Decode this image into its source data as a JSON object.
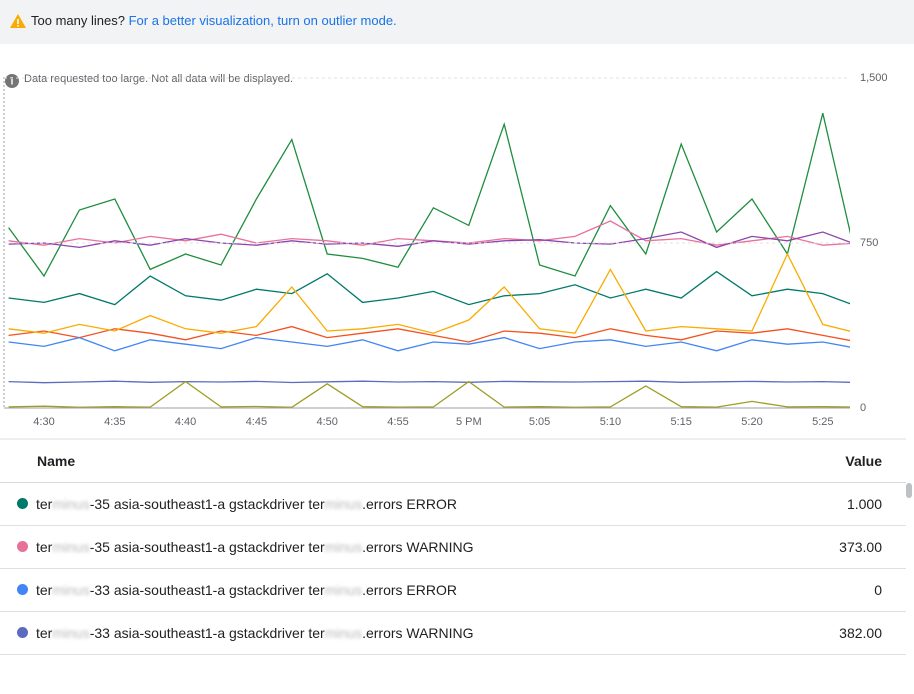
{
  "banner": {
    "question": "Too many lines?",
    "link": "For a better visualization, turn on outlier mode."
  },
  "note": "Data requested too large. Not all data will be displayed.",
  "chart_data": {
    "type": "line",
    "categories": [
      null,
      "4:30",
      null,
      "4:35",
      null,
      "4:40",
      null,
      "4:45",
      null,
      "4:50",
      null,
      "4:55",
      null,
      "5 PM",
      null,
      "5:05",
      null,
      "5:10",
      null,
      "5:15",
      null,
      "5:20",
      null,
      "5:25",
      null
    ],
    "ylim": [
      0,
      1500
    ],
    "yticks": [
      0,
      750,
      {
        "value": 1500,
        "label": "1,500"
      }
    ],
    "grid": true,
    "series": [
      {
        "color": "#1e8e3e",
        "values": [
          820,
          600,
          900,
          950,
          630,
          700,
          650,
          950,
          1220,
          700,
          680,
          640,
          910,
          830,
          1290,
          650,
          600,
          920,
          700,
          1200,
          800,
          950,
          700,
          1340,
          640
        ]
      },
      {
        "color": "#e8719c",
        "values": [
          760,
          740,
          770,
          750,
          780,
          760,
          790,
          750,
          770,
          760,
          740,
          770,
          760,
          750,
          770,
          760,
          780,
          850,
          760,
          770,
          740,
          760,
          780,
          740,
          750
        ]
      },
      {
        "color": "#8e44ad",
        "values": [
          745,
          750,
          730,
          760,
          740,
          770,
          750,
          740,
          760,
          745,
          750,
          735,
          760,
          745,
          760,
          765,
          750,
          745,
          770,
          800,
          730,
          780,
          760,
          800,
          740
        ]
      },
      {
        "color": "#00796b",
        "values": [
          500,
          480,
          520,
          470,
          600,
          510,
          490,
          540,
          520,
          610,
          480,
          500,
          530,
          470,
          510,
          520,
          560,
          500,
          540,
          500,
          620,
          510,
          540,
          520,
          460
        ]
      },
      {
        "color": "#f4511e",
        "values": [
          330,
          350,
          320,
          360,
          340,
          310,
          350,
          330,
          370,
          320,
          340,
          360,
          330,
          300,
          350,
          340,
          320,
          360,
          330,
          310,
          350,
          340,
          360,
          330,
          300
        ]
      },
      {
        "color": "#4285f4",
        "values": [
          300,
          280,
          320,
          260,
          310,
          290,
          270,
          320,
          300,
          280,
          310,
          260,
          300,
          290,
          320,
          270,
          300,
          310,
          280,
          300,
          260,
          310,
          290,
          300,
          270
        ]
      },
      {
        "color": "#f9ab00",
        "values": [
          360,
          340,
          380,
          350,
          420,
          360,
          340,
          370,
          550,
          350,
          360,
          380,
          340,
          400,
          550,
          360,
          340,
          630,
          350,
          370,
          360,
          350,
          700,
          380,
          340
        ]
      },
      {
        "color": "#5c6bc0",
        "values": [
          120,
          115,
          118,
          122,
          117,
          120,
          118,
          121,
          116,
          119,
          122,
          118,
          120,
          117,
          121,
          119,
          118,
          120,
          122,
          117,
          119,
          121,
          118,
          120,
          116
        ]
      },
      {
        "color": "#9e9d24",
        "values": [
          5,
          8,
          3,
          6,
          4,
          120,
          5,
          7,
          3,
          110,
          6,
          4,
          5,
          120,
          4,
          6,
          3,
          5,
          100,
          6,
          4,
          30,
          5,
          6,
          4
        ]
      }
    ]
  },
  "table": {
    "header": [
      "Name",
      "Value"
    ],
    "rows": [
      {
        "color": "#00796b",
        "name": [
          "ter",
          "minus",
          "-35 asia-southeast1-a gstackdriver ter",
          "minus",
          ".errors ERROR"
        ],
        "value": "1.000"
      },
      {
        "color": "#e8719c",
        "name": [
          "ter",
          "minus",
          "-35 asia-southeast1-a gstackdriver ter",
          "minus",
          ".errors WARNING"
        ],
        "value": "373.00"
      },
      {
        "color": "#4285f4",
        "name": [
          "ter",
          "minus",
          "-33 asia-southeast1-a gstackdriver ter",
          "minus",
          ".errors ERROR"
        ],
        "value": "0"
      },
      {
        "color": "#5c6bc0",
        "name": [
          "ter",
          "minus",
          "-33 asia-southeast1-a gstackdriver ter",
          "minus",
          ".errors WARNING"
        ],
        "value": "382.00"
      }
    ]
  }
}
